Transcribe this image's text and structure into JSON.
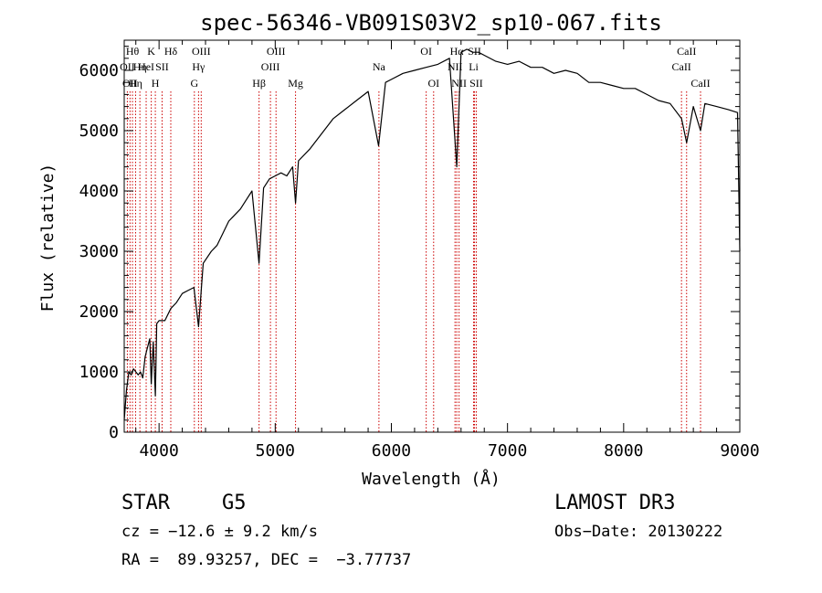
{
  "chart_data": {
    "type": "line",
    "title": "spec-56346-VB091S03V2_sp10-067.fits",
    "xlabel": "Wavelength (Å)",
    "ylabel": "Flux (relative)",
    "xlim": [
      3700,
      9000
    ],
    "ylim": [
      0,
      6500
    ],
    "x_ticks": [
      4000,
      5000,
      6000,
      7000,
      8000,
      9000
    ],
    "y_ticks": [
      0,
      1000,
      2000,
      3000,
      4000,
      5000,
      6000
    ],
    "grid": false,
    "line_color": "#000000",
    "marker_color": "#cc0000",
    "series": [
      {
        "x": [
          3700,
          3720,
          3740,
          3760,
          3780,
          3800,
          3820,
          3840,
          3860,
          3880,
          3900,
          3920,
          3933,
          3950,
          3968,
          3980,
          4000,
          4050,
          4101,
          4150,
          4200,
          4250,
          4300,
          4340,
          4380,
          4450,
          4500,
          4550,
          4600,
          4650,
          4700,
          4750,
          4800,
          4861,
          4900,
          4950,
          5000,
          5050,
          5100,
          5150,
          5175,
          5200,
          5300,
          5400,
          5500,
          5600,
          5700,
          5800,
          5890,
          5950,
          6000,
          6100,
          6200,
          6300,
          6400,
          6500,
          6563,
          6600,
          6650,
          6700,
          6750,
          6800,
          6900,
          7000,
          7100,
          7200,
          7300,
          7400,
          7500,
          7600,
          7700,
          7800,
          7900,
          8000,
          8100,
          8200,
          8300,
          8400,
          8498,
          8542,
          8600,
          8662,
          8700,
          8800,
          8900,
          8980,
          9000
        ],
        "y": [
          200,
          700,
          1000,
          950,
          1050,
          1000,
          950,
          1000,
          900,
          1250,
          1400,
          1550,
          800,
          1500,
          600,
          1800,
          1850,
          1850,
          2050,
          2150,
          2300,
          2350,
          2400,
          1750,
          2800,
          3000,
          3100,
          3300,
          3500,
          3600,
          3700,
          3850,
          4000,
          2800,
          4050,
          4200,
          4250,
          4300,
          4250,
          4400,
          3800,
          4500,
          4700,
          4950,
          5200,
          5350,
          5500,
          5650,
          4750,
          5800,
          5850,
          5950,
          6000,
          6050,
          6100,
          6200,
          4400,
          6300,
          6350,
          6300,
          6300,
          6250,
          6150,
          6100,
          6150,
          6050,
          6050,
          5950,
          6000,
          5950,
          5800,
          5800,
          5750,
          5700,
          5700,
          5600,
          5500,
          5450,
          5200,
          4800,
          5400,
          5000,
          5450,
          5400,
          5350,
          5300,
          3000
        ]
      }
    ],
    "lines": [
      {
        "w": 3727,
        "label": "OII",
        "row": 1
      },
      {
        "w": 3750,
        "label": "OII",
        "row": 2
      },
      {
        "w": 3771,
        "label": "Hθ",
        "row": 0
      },
      {
        "w": 3798,
        "label": "Hη",
        "row": 2
      },
      {
        "w": 3835,
        "label": "Hη",
        "row": 1
      },
      {
        "w": 3889,
        "label": "HeI",
        "row": 1
      },
      {
        "w": 3933,
        "label": "K",
        "row": 0
      },
      {
        "w": 3968,
        "label": "H",
        "row": 2
      },
      {
        "w": 4026,
        "label": "SII",
        "row": 1
      },
      {
        "w": 4101,
        "label": "Hδ",
        "row": 0
      },
      {
        "w": 4304,
        "label": "G",
        "row": 2
      },
      {
        "w": 4340,
        "label": "Hγ",
        "row": 1
      },
      {
        "w": 4363,
        "label": "OIII",
        "row": 0
      },
      {
        "w": 4861,
        "label": "Hβ",
        "row": 2
      },
      {
        "w": 4959,
        "label": "OIII",
        "row": 1
      },
      {
        "w": 5007,
        "label": "OIII",
        "row": 0
      },
      {
        "w": 5175,
        "label": "Mg",
        "row": 2
      },
      {
        "w": 5893,
        "label": "Na",
        "row": 1
      },
      {
        "w": 6300,
        "label": "OI",
        "row": 0
      },
      {
        "w": 6364,
        "label": "OI",
        "row": 2
      },
      {
        "w": 6548,
        "label": "NII",
        "row": 1
      },
      {
        "w": 6563,
        "label": "Hα",
        "row": 0
      },
      {
        "w": 6583,
        "label": "NII",
        "row": 2
      },
      {
        "w": 6708,
        "label": "Li",
        "row": 1
      },
      {
        "w": 6716,
        "label": "SII",
        "row": 0
      },
      {
        "w": 6731,
        "label": "SII",
        "row": 2
      },
      {
        "w": 8498,
        "label": "CaII",
        "row": 1
      },
      {
        "w": 8542,
        "label": "CaII",
        "row": 0
      },
      {
        "w": 8662,
        "label": "CaII",
        "row": 2
      }
    ]
  },
  "info": {
    "class": "STAR",
    "subclass": "G5",
    "survey": "LAMOST DR3",
    "cz": "cz = −12.6 ± 9.2 km/s",
    "obs_date": "Obs−Date: 20130222",
    "radec": "RA =  89.93257, DEC =  −3.77737"
  }
}
